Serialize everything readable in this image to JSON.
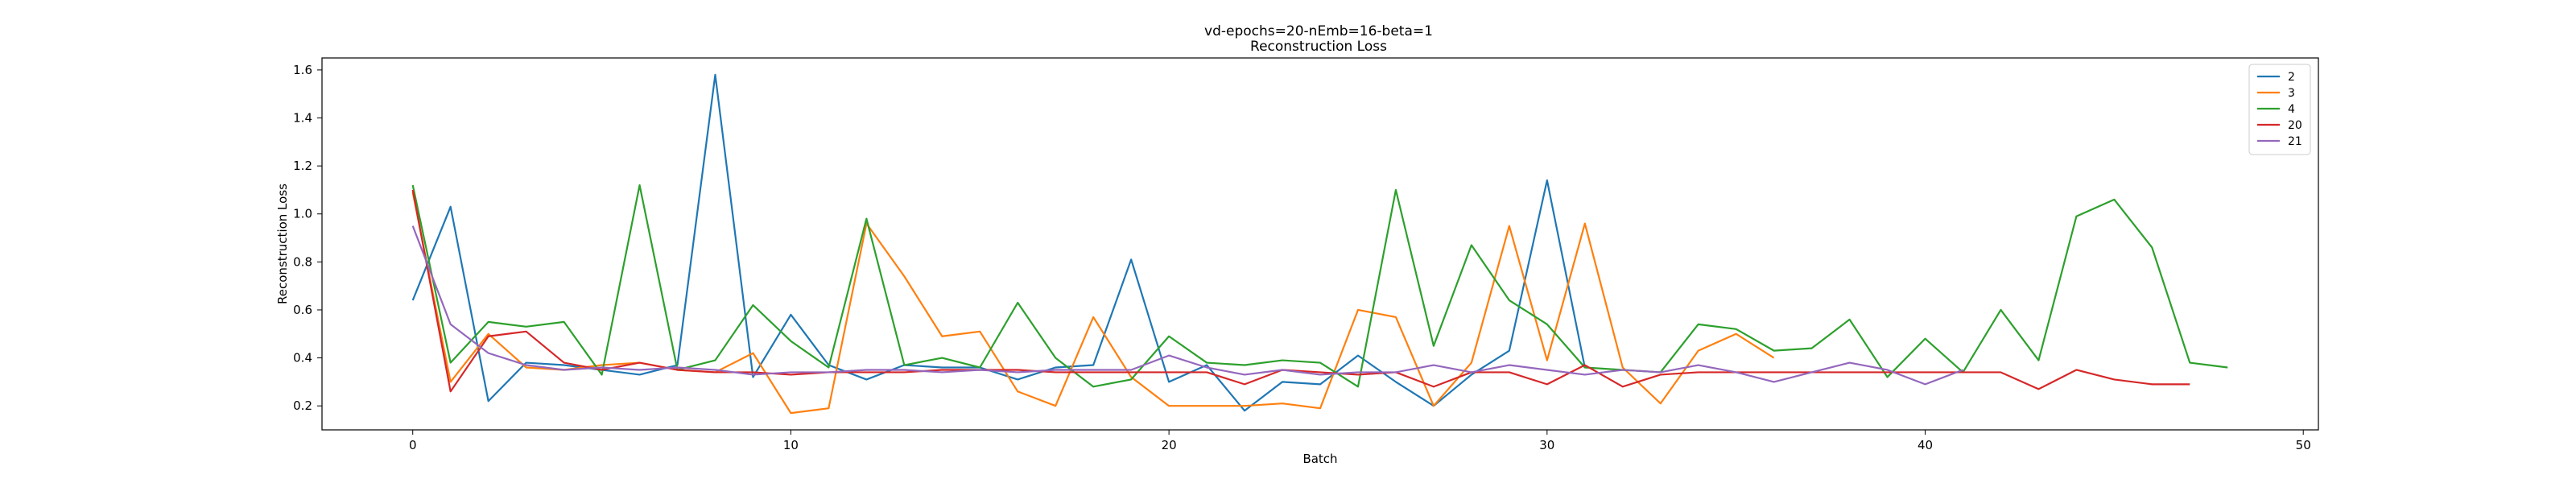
{
  "chart_data": {
    "type": "line",
    "title": "vd-epochs=20-nEmb=16-beta=1",
    "subtitle": "Reconstruction Loss",
    "xlabel": "Batch",
    "ylabel": "Reconstruction Loss",
    "xlim": [
      -2.4,
      50.4
    ],
    "ylim": [
      0.1,
      1.65
    ],
    "xticks": [
      "0",
      "10",
      "20",
      "30",
      "40",
      "50"
    ],
    "yticks": [
      "0.2",
      "0.4",
      "0.6",
      "0.8",
      "1.0",
      "1.2",
      "1.4",
      "1.6"
    ],
    "legend_position": "top-right",
    "grid": false,
    "series": [
      {
        "name": "2",
        "color": "#1f77b4",
        "values": [
          0.64,
          1.03,
          0.22,
          0.38,
          0.37,
          0.35,
          0.33,
          0.37,
          1.58,
          0.32,
          0.58,
          0.37,
          0.31,
          0.37,
          0.36,
          0.36,
          0.31,
          0.36,
          0.37,
          0.81,
          0.3,
          0.37,
          0.18,
          0.3,
          0.29,
          0.41,
          0.3,
          0.2,
          0.33,
          0.43,
          1.14,
          0.36
        ]
      },
      {
        "name": "3",
        "color": "#ff7f0e",
        "values": [
          1.09,
          0.3,
          0.5,
          0.36,
          0.35,
          0.37,
          0.38,
          0.35,
          0.34,
          0.42,
          0.17,
          0.19,
          0.96,
          0.74,
          0.49,
          0.51,
          0.26,
          0.2,
          0.57,
          0.32,
          0.2,
          0.2,
          0.2,
          0.21,
          0.19,
          0.6,
          0.57,
          0.2,
          0.38,
          0.95,
          0.39,
          0.96,
          0.36,
          0.21,
          0.43,
          0.5,
          0.4
        ]
      },
      {
        "name": "4",
        "color": "#2ca02c",
        "values": [
          1.12,
          0.38,
          0.55,
          0.53,
          0.55,
          0.33,
          1.12,
          0.35,
          0.39,
          0.62,
          0.47,
          0.36,
          0.98,
          0.37,
          0.4,
          0.36,
          0.63,
          0.4,
          0.28,
          0.31,
          0.49,
          0.38,
          0.37,
          0.39,
          0.38,
          0.28,
          1.1,
          0.45,
          0.87,
          0.64,
          0.54,
          0.36,
          0.35,
          0.34,
          0.54,
          0.52,
          0.43,
          0.44,
          0.56,
          0.32,
          0.48,
          0.34,
          0.6,
          0.39,
          0.99,
          1.06,
          0.86,
          0.38,
          0.36
        ]
      },
      {
        "name": "20",
        "color": "#d62728",
        "values": [
          1.1,
          0.26,
          0.49,
          0.51,
          0.38,
          0.35,
          0.38,
          0.35,
          0.34,
          0.34,
          0.33,
          0.34,
          0.34,
          0.34,
          0.35,
          0.35,
          0.35,
          0.34,
          0.34,
          0.34,
          0.34,
          0.34,
          0.29,
          0.35,
          0.34,
          0.33,
          0.34,
          0.28,
          0.34,
          0.34,
          0.29,
          0.37,
          0.28,
          0.33,
          0.34,
          0.34,
          0.34,
          0.34,
          0.34,
          0.34,
          0.34,
          0.34,
          0.34,
          0.27,
          0.35,
          0.31,
          0.29,
          0.29
        ]
      },
      {
        "name": "21",
        "color": "#9467bd",
        "values": [
          0.95,
          0.54,
          0.42,
          0.37,
          0.35,
          0.36,
          0.35,
          0.36,
          0.35,
          0.33,
          0.34,
          0.34,
          0.35,
          0.35,
          0.34,
          0.35,
          0.34,
          0.35,
          0.35,
          0.35,
          0.41,
          0.36,
          0.33,
          0.35,
          0.33,
          0.34,
          0.34,
          0.37,
          0.34,
          0.37,
          0.35,
          0.33,
          0.35,
          0.34,
          0.37,
          0.34,
          0.3,
          0.34,
          0.38,
          0.35,
          0.29,
          0.35
        ]
      }
    ]
  }
}
